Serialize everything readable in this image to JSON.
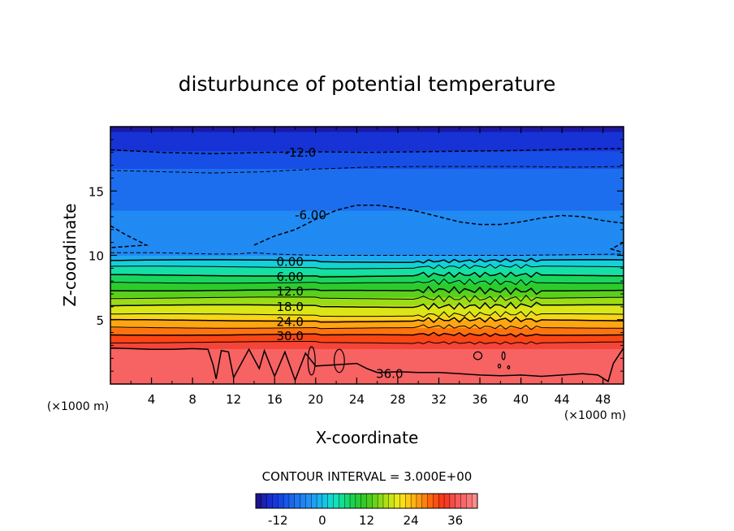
{
  "chart_data": {
    "type": "heatmap",
    "title": "disturbunce of potential temperature",
    "xlabel": "X-coordinate",
    "ylabel": "Z-coordinate",
    "x_unit_left": "(×1000 m)",
    "x_unit_right": "(×1000 m)",
    "xlim": [
      0,
      50
    ],
    "ylim": [
      0,
      20
    ],
    "x_ticks": [
      4,
      8,
      12,
      16,
      20,
      24,
      28,
      32,
      36,
      40,
      44,
      48
    ],
    "x_tick_labels": [
      "4",
      "8",
      "12",
      "16",
      "20",
      "24",
      "28",
      "32",
      "36",
      "40",
      "44",
      "48"
    ],
    "y_ticks": [
      5,
      10,
      15
    ],
    "y_tick_labels": [
      "5",
      "10",
      "15"
    ],
    "contour_interval_text": "CONTOUR INTERVAL = 3.000E+00",
    "contour_interval": 3,
    "field_range": [
      -18,
      39
    ],
    "dashed_contours": [
      {
        "level": -12,
        "label": "-12.0",
        "label_x": 18.5,
        "x": [
          0,
          5,
          10,
          15,
          20,
          25,
          30,
          35,
          40,
          45,
          50
        ],
        "z": [
          18.2,
          18.0,
          17.9,
          18.0,
          18.05,
          18.0,
          18.05,
          18.1,
          18.15,
          18.25,
          18.3
        ]
      },
      {
        "level": -9,
        "label": "",
        "x": [
          0,
          5,
          10,
          15,
          20,
          25,
          30,
          35,
          40,
          45,
          50
        ],
        "z": [
          16.6,
          16.5,
          16.4,
          16.5,
          16.7,
          16.85,
          16.9,
          16.9,
          16.9,
          16.85,
          16.9
        ]
      },
      {
        "level": -6,
        "label": "-6.00",
        "label_x": 19.5,
        "x": [
          14,
          16,
          18,
          20,
          22,
          24,
          26,
          28,
          30,
          32,
          34,
          36,
          38,
          40,
          42,
          44,
          46,
          48,
          50
        ],
        "z": [
          10.8,
          11.5,
          12.0,
          12.8,
          13.5,
          13.9,
          13.9,
          13.7,
          13.4,
          13.0,
          12.6,
          12.4,
          12.4,
          12.6,
          12.9,
          13.1,
          13.0,
          12.7,
          12.5
        ]
      },
      {
        "level": -3,
        "label": "",
        "x": [
          0,
          5,
          10,
          12,
          14,
          16,
          20,
          25,
          30,
          35,
          40,
          45,
          50
        ],
        "z": [
          10.2,
          10.2,
          10.1,
          10.1,
          10.2,
          10.1,
          10.0,
          10.0,
          10.0,
          10.0,
          10.0,
          10.05,
          10.1
        ]
      }
    ],
    "solid_contours": [
      {
        "level": 0,
        "label": "0.00",
        "label_x": 17.5,
        "z": 9.6,
        "wave": 0.08
      },
      {
        "level": 3,
        "label": "",
        "z": 9.1,
        "wave": 0.1
      },
      {
        "level": 6,
        "label": "6.00",
        "label_x": 17.5,
        "z": 8.45,
        "wave": 0.12
      },
      {
        "level": 9,
        "label": "",
        "z": 7.9,
        "wave": 0.14
      },
      {
        "level": 12,
        "label": "12.0",
        "label_x": 17.5,
        "z": 7.3,
        "wave": 0.16
      },
      {
        "level": 15,
        "label": "",
        "z": 6.7,
        "wave": 0.16
      },
      {
        "level": 18,
        "label": "18.0",
        "label_x": 17.5,
        "z": 6.1,
        "wave": 0.15
      },
      {
        "level": 21,
        "label": "",
        "z": 5.4,
        "wave": 0.14
      },
      {
        "level": 24,
        "label": "24.0",
        "label_x": 17.5,
        "z": 4.95,
        "wave": 0.12
      },
      {
        "level": 27,
        "label": "",
        "z": 4.4,
        "wave": 0.1
      },
      {
        "level": 30,
        "label": "30.0",
        "label_x": 17.5,
        "z": 3.85,
        "wave": 0.08
      },
      {
        "level": 33,
        "label": "",
        "z": 3.25,
        "wave": 0.06
      }
    ],
    "contour_36": {
      "level": 36,
      "label": "36.0",
      "label_x": 27.2,
      "x": [
        0,
        2,
        4,
        6,
        8,
        9.5,
        10,
        10.3,
        10.8,
        11.5,
        12,
        13.5,
        14.5,
        15,
        16,
        17,
        18,
        19,
        20,
        22,
        24,
        25,
        26,
        28,
        30,
        32,
        34,
        36,
        38,
        40,
        42,
        44,
        46,
        47.5,
        48.5,
        49,
        50
      ],
      "z": [
        2.8,
        2.75,
        2.7,
        2.7,
        2.75,
        2.7,
        1.5,
        0.4,
        2.6,
        2.5,
        0.5,
        2.7,
        1.2,
        2.6,
        0.6,
        2.5,
        0.3,
        2.4,
        1.4,
        1.5,
        1.6,
        1.2,
        0.9,
        0.95,
        0.9,
        0.9,
        0.8,
        0.7,
        0.65,
        0.7,
        0.6,
        0.7,
        0.8,
        0.7,
        0.2,
        1.6,
        2.8
      ]
    },
    "colorbar": {
      "ticks": [
        -12,
        0,
        12,
        24,
        36
      ],
      "tick_labels": [
        "-12",
        "0",
        "12",
        "24",
        "36"
      ],
      "range": [
        -18,
        42
      ]
    },
    "colors": {
      "low": "#1a0a8c",
      "blue": "#1e7fe8",
      "cyan": "#18e0d0",
      "green": "#20c030",
      "yellow": "#f0f020",
      "orange": "#ff7a10",
      "red": "#f03020",
      "surface": "#f45656"
    }
  }
}
